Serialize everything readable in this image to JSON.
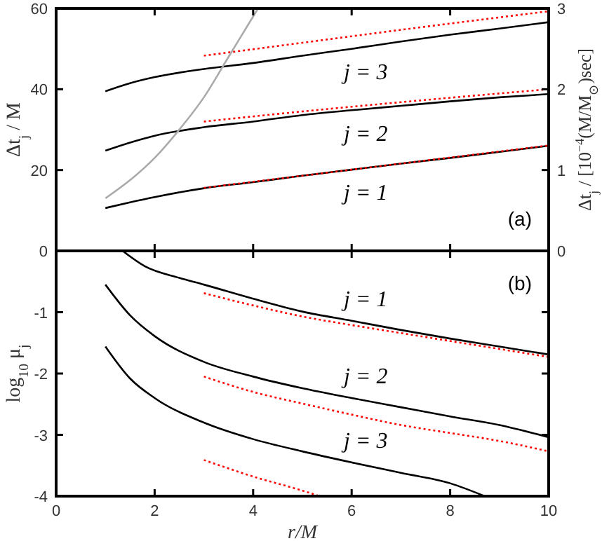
{
  "chart_data": [
    {
      "type": "line",
      "ylabel": "Δt$_{j}$ / M",
      "y2label": "Δt$_{j}$ / [10$^{−4}$(M/M$_{⊙}$)sec]",
      "xlim": [
        0,
        10
      ],
      "xticks": [
        {
          "value": 0,
          "label": null
        },
        {
          "value": 2,
          "label": null
        },
        {
          "value": 4,
          "label": null
        },
        {
          "value": 6,
          "label": null
        },
        {
          "value": 8,
          "label": null
        },
        {
          "value": 10,
          "label": null
        }
      ],
      "ylim": [
        0,
        60
      ],
      "yticks": [
        0,
        20,
        40,
        60
      ],
      "y2lim": [
        0,
        3
      ],
      "y2ticks": [
        0,
        1,
        2,
        3
      ],
      "tick_labels": "y",
      "grid": false,
      "marker": "none",
      "series": [
        {
          "name": "j = 3",
          "color": "#000000",
          "line_style": "solid",
          "x": [
            1,
            1.5,
            2,
            3,
            4,
            5,
            6,
            7,
            8,
            9,
            10
          ],
          "values": [
            39.5,
            41.5,
            43,
            45,
            46.5,
            48.3,
            50,
            51.8,
            53.5,
            55,
            56.6
          ]
        },
        {
          "color": "#ff0000",
          "line_style": "dotted",
          "x": [
            3,
            5,
            7,
            10
          ],
          "values": [
            48.3,
            51.5,
            54.7,
            59.3
          ]
        },
        {
          "name": "j = 2",
          "color": "#000000",
          "line_style": "solid",
          "x": [
            1,
            1.5,
            2,
            3,
            4,
            5,
            6,
            7,
            8,
            9,
            10
          ],
          "values": [
            24.8,
            26.8,
            28.5,
            30.6,
            32,
            33.6,
            34.8,
            35.9,
            37,
            38,
            38.8
          ]
        },
        {
          "color": "#ff0000",
          "line_style": "dotted",
          "x": [
            3,
            5,
            7,
            10
          ],
          "values": [
            32,
            34.5,
            36.8,
            40
          ]
        },
        {
          "name": "j = 1",
          "color": "#000000",
          "line_style": "solid",
          "x": [
            1,
            1.5,
            2,
            3,
            4,
            5,
            6,
            7,
            8,
            9,
            10
          ],
          "values": [
            10.6,
            12,
            13.3,
            15.5,
            17,
            18.6,
            20.1,
            21.6,
            23,
            24.5,
            26
          ]
        },
        {
          "color": "#ff0000",
          "line_style": "dotted",
          "x": [
            3,
            5,
            7,
            10
          ],
          "values": [
            15.6,
            18.6,
            21.6,
            26.1
          ]
        },
        {
          "color": "#aaaaaa",
          "line_style": "solid",
          "x": [
            1,
            1.5,
            2,
            2.5,
            3,
            3.5,
            4,
            4.1
          ],
          "values": [
            13,
            17.5,
            23,
            30,
            38,
            48,
            58,
            60
          ]
        }
      ],
      "annotations": [
        "(a)"
      ]
    },
    {
      "type": "line",
      "xlabel": "r/M",
      "ylabel": "log$_{10}$ μ$_{j}$",
      "xlim": [
        0,
        10
      ],
      "xticks": [
        0,
        2,
        4,
        6,
        8,
        10
      ],
      "ylim": [
        -4,
        0
      ],
      "yticks": [
        -4,
        -3,
        -2,
        -1
      ],
      "grid": false,
      "marker": "none",
      "series": [
        {
          "name": "j = 1",
          "color": "#000000",
          "line_style": "solid",
          "x": [
            1.35,
            1.8,
            2.5,
            3,
            4,
            5,
            6,
            7,
            8,
            9,
            10
          ],
          "values": [
            0,
            -0.25,
            -0.44,
            -0.55,
            -0.78,
            -0.99,
            -1.14,
            -1.29,
            -1.43,
            -1.56,
            -1.69
          ]
        },
        {
          "color": "#ff0000",
          "line_style": "dotted",
          "x": [
            3,
            4,
            5,
            6,
            7,
            8,
            9,
            10
          ],
          "values": [
            -0.69,
            -0.89,
            -1.07,
            -1.21,
            -1.34,
            -1.47,
            -1.6,
            -1.73
          ]
        },
        {
          "name": "j = 2",
          "color": "#000000",
          "line_style": "solid",
          "x": [
            1,
            1.5,
            2,
            3,
            4,
            5,
            6,
            7,
            8,
            9,
            10
          ],
          "values": [
            -0.55,
            -1.05,
            -1.39,
            -1.81,
            -2.05,
            -2.24,
            -2.4,
            -2.55,
            -2.7,
            -2.84,
            -3.04
          ]
        },
        {
          "color": "#ff0000",
          "line_style": "dotted",
          "x": [
            3,
            4,
            5,
            6,
            7,
            8,
            9,
            10
          ],
          "values": [
            -2.05,
            -2.3,
            -2.49,
            -2.67,
            -2.84,
            -2.97,
            -3.1,
            -3.27
          ]
        },
        {
          "name": "j = 3",
          "color": "#000000",
          "line_style": "solid",
          "x": [
            1,
            1.5,
            2,
            3,
            4,
            5,
            6,
            7,
            8,
            8.7
          ],
          "values": [
            -1.56,
            -2.08,
            -2.4,
            -2.8,
            -3.07,
            -3.27,
            -3.45,
            -3.62,
            -3.79,
            -4
          ]
        },
        {
          "color": "#ff0000",
          "line_style": "dotted",
          "x": [
            3,
            4,
            5,
            5.35
          ],
          "values": [
            -3.41,
            -3.68,
            -3.91,
            -4
          ]
        }
      ],
      "annotations": [
        "(b)"
      ]
    }
  ]
}
